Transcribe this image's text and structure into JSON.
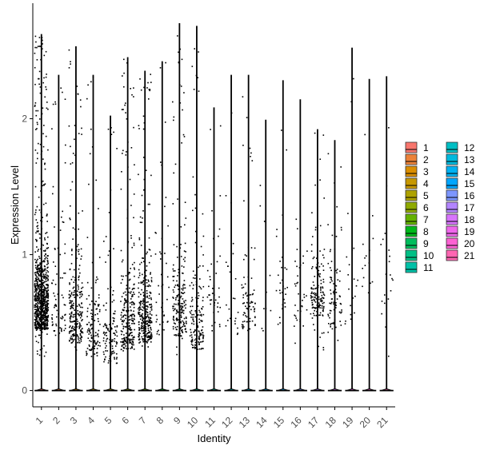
{
  "chart_data": {
    "type": "violin",
    "xlabel": "Identity",
    "ylabel": "Expression Level",
    "categories": [
      "1",
      "2",
      "3",
      "4",
      "5",
      "6",
      "7",
      "8",
      "9",
      "10",
      "11",
      "12",
      "13",
      "14",
      "15",
      "16",
      "17",
      "18",
      "19",
      "20",
      "21"
    ],
    "ylim": [
      -0.12,
      2.85
    ],
    "yticks": [
      0,
      1,
      2
    ],
    "ytick_labels": [
      "0",
      "1",
      "2"
    ],
    "max_values": [
      2.62,
      2.32,
      2.53,
      2.32,
      2.02,
      2.45,
      2.35,
      2.42,
      2.7,
      2.68,
      2.08,
      2.32,
      2.32,
      1.99,
      2.28,
      2.14,
      1.92,
      1.84,
      2.52,
      2.29,
      2.31
    ],
    "median_nonzero": [
      0.6,
      0.55,
      0.5,
      0.4,
      0.35,
      0.45,
      0.5,
      0.55,
      0.55,
      0.45,
      0.6,
      0.55,
      0.6,
      0.5,
      0.7,
      0.6,
      0.7,
      0.6,
      0.6,
      0.8,
      0.6
    ],
    "spread_nonzero": [
      0.45,
      0.55,
      0.5,
      0.45,
      0.4,
      0.45,
      0.45,
      0.6,
      0.5,
      0.4,
      0.55,
      0.55,
      0.35,
      0.55,
      0.5,
      0.5,
      0.4,
      0.45,
      0.6,
      0.6,
      0.6
    ],
    "point_counts": [
      900,
      80,
      250,
      120,
      120,
      260,
      320,
      45,
      200,
      150,
      40,
      25,
      80,
      10,
      30,
      35,
      150,
      80,
      20,
      15,
      20
    ],
    "legend": {
      "position": "right",
      "columns": 2,
      "entries": [
        {
          "label": "1",
          "color": "#F8766D"
        },
        {
          "label": "2",
          "color": "#EC8239"
        },
        {
          "label": "3",
          "color": "#DB8E00"
        },
        {
          "label": "4",
          "color": "#C79800"
        },
        {
          "label": "5",
          "color": "#AEA200"
        },
        {
          "label": "6",
          "color": "#8FAA00"
        },
        {
          "label": "7",
          "color": "#64B200"
        },
        {
          "label": "8",
          "color": "#00B81B"
        },
        {
          "label": "9",
          "color": "#00BD5C"
        },
        {
          "label": "10",
          "color": "#00C085"
        },
        {
          "label": "11",
          "color": "#00C1A7"
        },
        {
          "label": "12",
          "color": "#00BFC4"
        },
        {
          "label": "13",
          "color": "#00BADE"
        },
        {
          "label": "14",
          "color": "#00B2F3"
        },
        {
          "label": "15",
          "color": "#00A6FF"
        },
        {
          "label": "16",
          "color": "#7C96FF"
        },
        {
          "label": "17",
          "color": "#B385FF"
        },
        {
          "label": "18",
          "color": "#D874FD"
        },
        {
          "label": "19",
          "color": "#EF67EB"
        },
        {
          "label": "20",
          "color": "#FD61D3"
        },
        {
          "label": "21",
          "color": "#FF65B2"
        }
      ]
    },
    "grid": false,
    "points_color": "#000000"
  }
}
